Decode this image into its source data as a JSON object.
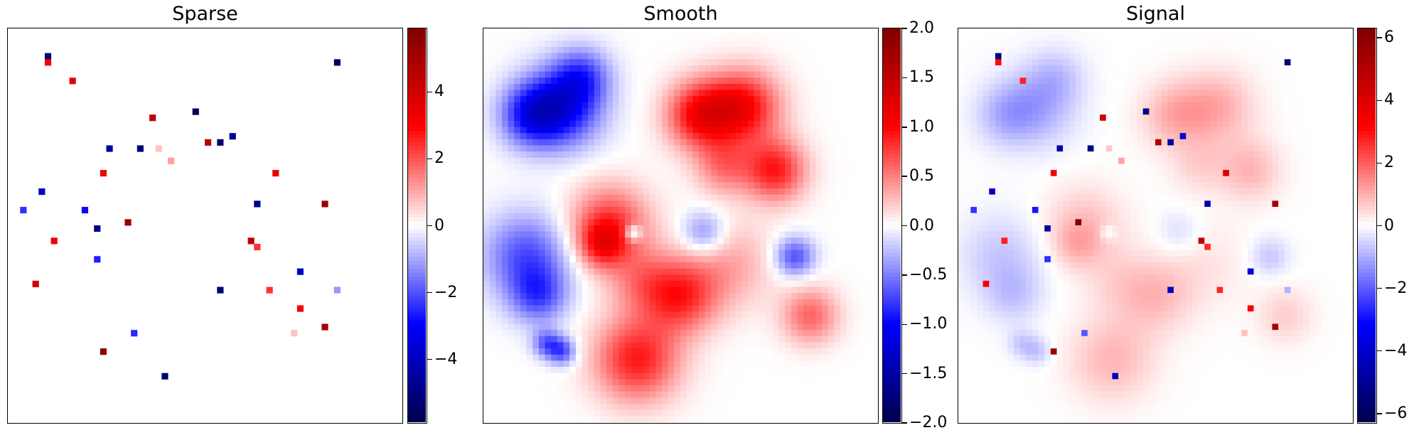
{
  "chart_data": [
    {
      "type": "heatmap",
      "title": "Sparse",
      "colormap": "seismic",
      "clim": [
        -5.9,
        5.9
      ],
      "colorbar_ticks": [
        4,
        2,
        0,
        -2,
        -4
      ],
      "background_value": 0,
      "points": [
        {
          "x": 0.095,
          "y": 0.065,
          "v": -5.2
        },
        {
          "x": 0.095,
          "y": 0.085,
          "v": 3.2
        },
        {
          "x": 0.17,
          "y": 0.13,
          "v": 3.6
        },
        {
          "x": 0.37,
          "y": 0.22,
          "v": 4.4
        },
        {
          "x": 0.48,
          "y": 0.21,
          "v": -5.7
        },
        {
          "x": 0.84,
          "y": 0.085,
          "v": -5.7
        },
        {
          "x": 0.255,
          "y": 0.3,
          "v": -4.6
        },
        {
          "x": 0.335,
          "y": 0.31,
          "v": -5.2
        },
        {
          "x": 0.39,
          "y": 0.3,
          "v": 0.7
        },
        {
          "x": 0.42,
          "y": 0.34,
          "v": 1.1
        },
        {
          "x": 0.515,
          "y": 0.285,
          "v": 4.6
        },
        {
          "x": 0.545,
          "y": 0.285,
          "v": -5.4
        },
        {
          "x": 0.575,
          "y": 0.275,
          "v": -4.8
        },
        {
          "x": 0.245,
          "y": 0.37,
          "v": 3.4
        },
        {
          "x": 0.685,
          "y": 0.37,
          "v": 3.4
        },
        {
          "x": 0.08,
          "y": 0.41,
          "v": -4.0
        },
        {
          "x": 0.045,
          "y": 0.455,
          "v": -2.4
        },
        {
          "x": 0.19,
          "y": 0.455,
          "v": -2.9
        },
        {
          "x": 0.64,
          "y": 0.44,
          "v": -4.8
        },
        {
          "x": 0.8,
          "y": 0.44,
          "v": 5.2
        },
        {
          "x": 0.22,
          "y": 0.505,
          "v": -5.0
        },
        {
          "x": 0.305,
          "y": 0.49,
          "v": 5.3
        },
        {
          "x": 0.12,
          "y": 0.545,
          "v": 3.4
        },
        {
          "x": 0.61,
          "y": 0.545,
          "v": 4.6
        },
        {
          "x": 0.64,
          "y": 0.555,
          "v": 2.4
        },
        {
          "x": 0.22,
          "y": 0.585,
          "v": -2.6
        },
        {
          "x": 0.735,
          "y": 0.61,
          "v": -3.8
        },
        {
          "x": 0.065,
          "y": 0.655,
          "v": 4.0
        },
        {
          "x": 0.545,
          "y": 0.67,
          "v": -5.1
        },
        {
          "x": 0.66,
          "y": 0.67,
          "v": 2.4
        },
        {
          "x": 0.83,
          "y": 0.66,
          "v": -1.2
        },
        {
          "x": 0.735,
          "y": 0.71,
          "v": 3.2
        },
        {
          "x": 0.8,
          "y": 0.75,
          "v": 5.0
        },
        {
          "x": 0.725,
          "y": 0.775,
          "v": 0.7
        },
        {
          "x": 0.325,
          "y": 0.77,
          "v": -2.5
        },
        {
          "x": 0.245,
          "y": 0.82,
          "v": 5.6
        },
        {
          "x": 0.4,
          "y": 0.88,
          "v": -5.2
        }
      ]
    },
    {
      "type": "heatmap",
      "title": "Smooth",
      "colormap": "seismic",
      "clim": [
        -2.0,
        2.0
      ],
      "colorbar_ticks": [
        2.0,
        1.5,
        1.0,
        0.5,
        0.0,
        -0.5,
        -1.0,
        -1.5,
        -2.0
      ],
      "blobs": [
        {
          "x": 0.2,
          "y": 0.2,
          "v": -1.0,
          "s": 0.07
        },
        {
          "x": 0.12,
          "y": 0.22,
          "v": -0.8,
          "s": 0.055
        },
        {
          "x": 0.25,
          "y": 0.12,
          "v": -0.6,
          "s": 0.05
        },
        {
          "x": 0.11,
          "y": 0.58,
          "v": -0.7,
          "s": 0.075
        },
        {
          "x": 0.14,
          "y": 0.68,
          "v": -0.6,
          "s": 0.05
        },
        {
          "x": 0.16,
          "y": 0.8,
          "v": -0.6,
          "s": 0.025
        },
        {
          "x": 0.2,
          "y": 0.82,
          "v": -0.7,
          "s": 0.025
        },
        {
          "x": 0.55,
          "y": 0.22,
          "v": 1.0,
          "s": 0.06
        },
        {
          "x": 0.66,
          "y": 0.2,
          "v": 1.0,
          "s": 0.065
        },
        {
          "x": 0.74,
          "y": 0.36,
          "v": 0.9,
          "s": 0.055
        },
        {
          "x": 0.61,
          "y": 0.35,
          "v": 0.5,
          "s": 0.05
        },
        {
          "x": 0.32,
          "y": 0.5,
          "v": 0.8,
          "s": 0.07
        },
        {
          "x": 0.3,
          "y": 0.55,
          "v": 0.6,
          "s": 0.04
        },
        {
          "x": 0.5,
          "y": 0.68,
          "v": 0.8,
          "s": 0.065
        },
        {
          "x": 0.4,
          "y": 0.64,
          "v": 0.4,
          "s": 0.06
        },
        {
          "x": 0.39,
          "y": 0.84,
          "v": 0.9,
          "s": 0.075
        },
        {
          "x": 0.83,
          "y": 0.73,
          "v": 0.6,
          "s": 0.05
        },
        {
          "x": 0.62,
          "y": 0.6,
          "v": 0.35,
          "s": 0.08
        },
        {
          "x": 0.56,
          "y": 0.52,
          "v": -0.5,
          "s": 0.04
        },
        {
          "x": 0.79,
          "y": 0.58,
          "v": -0.7,
          "s": 0.035
        },
        {
          "x": 0.38,
          "y": 0.52,
          "v": -0.7,
          "s": 0.014
        }
      ]
    },
    {
      "type": "heatmap",
      "title": "Signal",
      "colormap": "seismic",
      "clim": [
        -6.3,
        6.3
      ],
      "colorbar_ticks": [
        6,
        4,
        2,
        0,
        -2,
        -4,
        -6
      ],
      "composition": "Sparse + Smooth"
    }
  ]
}
